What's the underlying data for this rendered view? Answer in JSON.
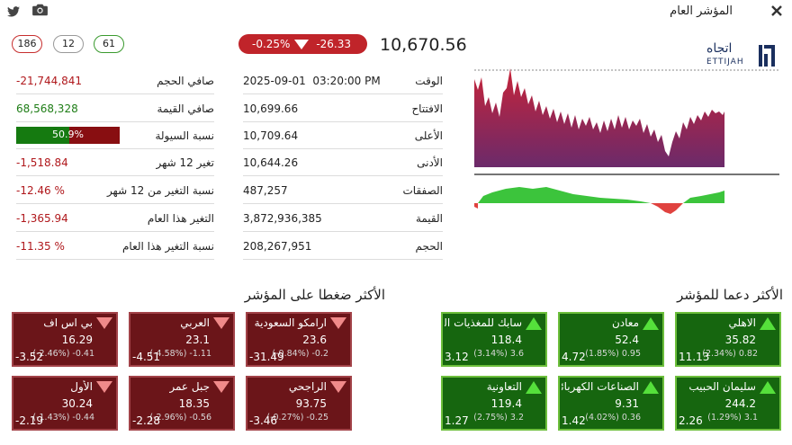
{
  "header": {
    "title": "المؤشر العام",
    "close_icon": "close-icon",
    "twitter_icon": "twitter-icon",
    "camera_icon": "camera-icon"
  },
  "index": {
    "value": "10,670.56",
    "change_points": "-26.33",
    "change_percent": "-0.25%"
  },
  "counts": {
    "declined": "186",
    "unchanged": "12",
    "advanced": "61"
  },
  "info": {
    "time": {
      "label": "الوقت",
      "value": "2025-09-01  03:20:00 PM"
    },
    "open": {
      "label": "الافتتاح",
      "value": "10,699.66"
    },
    "high": {
      "label": "الأعلى",
      "value": "10,709.64"
    },
    "low": {
      "label": "الأدنى",
      "value": "10,644.26"
    },
    "trades": {
      "label": "الصفقات",
      "value": "487,257"
    },
    "turnover": {
      "label": "القيمة",
      "value": "3,872,936,385"
    },
    "volume": {
      "label": "الحجم",
      "value": "208,267,951"
    }
  },
  "stats": {
    "net_volume": {
      "label": "صافي الحجم",
      "value": "-21,744,841"
    },
    "net_value": {
      "label": "صافي القيمة",
      "value": "68,568,328"
    },
    "liquidity": {
      "label": "نسبة السيولة",
      "value": "50.9%",
      "fraction": 0.509
    },
    "change_12m": {
      "label": "تغير 12 شهر",
      "value": "-1,518.84"
    },
    "change_12m_pct": {
      "label": "نسبة التغير من 12 شهر",
      "value": "-12.46 %"
    },
    "change_ytd": {
      "label": "التغير هذا العام",
      "value": "-1,365.94"
    },
    "change_ytd_pct": {
      "label": "نسبة التغير هذا العام",
      "value": "-11.35 %"
    }
  },
  "logo": {
    "arabic": "اتجاه",
    "latin": "ETTIJAH"
  },
  "colors": {
    "up": "#16660f",
    "down": "#6b1519",
    "accent_red": "#b0181c"
  },
  "supportive": {
    "title": "الأكثر دعما للمؤشر",
    "tiles": [
      {
        "name": "الاهلي",
        "price": "35.82",
        "change": "(2.34%) 0.82",
        "points": "11.13"
      },
      {
        "name": "معادن",
        "price": "52.4",
        "change": "(1.85%) 0.95",
        "points": "4.72"
      },
      {
        "name": "سابك للمغذيات الزراعية",
        "price": "118.4",
        "change": "(3.14%) 3.6",
        "points": "3.12"
      },
      {
        "name": "سليمان الحبيب",
        "price": "244.2",
        "change": "(1.29%) 3.1",
        "points": "2.26"
      },
      {
        "name": "الصناعات الكهربائية",
        "price": "9.31",
        "change": "(4.02%) 0.36",
        "points": "1.42"
      },
      {
        "name": "التعاونية",
        "price": "119.4",
        "change": "(2.75%) 3.2",
        "points": "1.27"
      }
    ]
  },
  "pressuring": {
    "title": "الأكثر ضغطا على المؤشر",
    "tiles": [
      {
        "name": "ارامكو السعودية",
        "price": "23.6",
        "change": "(-0.84%) -0.2",
        "points": "-31.49"
      },
      {
        "name": "العربي",
        "price": "23.1",
        "change": "(-4.58%) -1.11",
        "points": "-4.51"
      },
      {
        "name": "بي اس اف",
        "price": "16.29",
        "change": "(-2.46%) -0.41",
        "points": "-3.52"
      },
      {
        "name": "الراجحي",
        "price": "93.75",
        "change": "(-0.27%) -0.25",
        "points": "-3.46"
      },
      {
        "name": "جبل عمر",
        "price": "18.35",
        "change": "(-2.96%) -0.56",
        "points": "-2.28"
      },
      {
        "name": "الأول",
        "price": "30.24",
        "change": "(-1.43%) -0.44",
        "points": "-2.19"
      }
    ]
  }
}
